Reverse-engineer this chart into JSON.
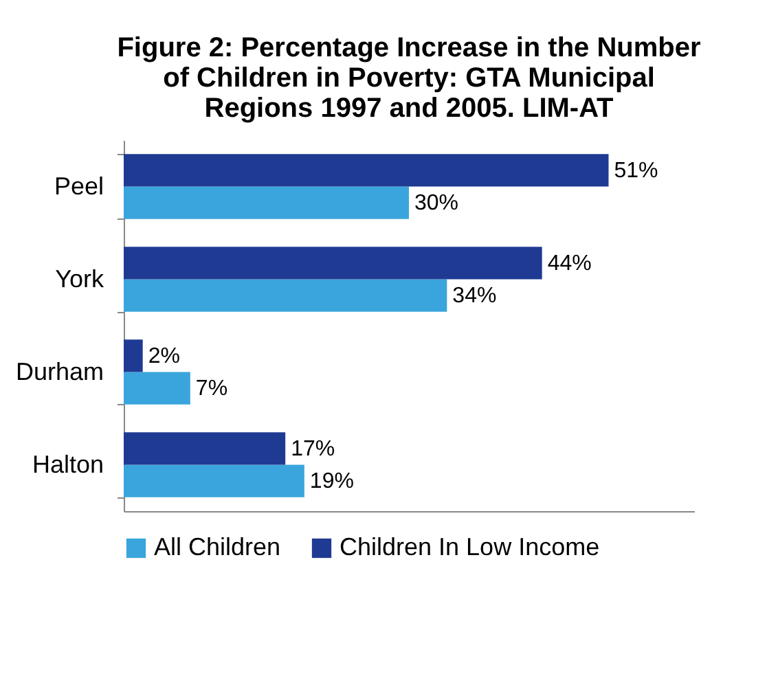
{
  "chart_data": {
    "type": "bar",
    "orientation": "horizontal",
    "title": "Figure 2: Percentage Increase in the Number of Children in Poverty: GTA Municipal Regions 1997 and 2005. LIM-AT",
    "categories": [
      "Peel",
      "York",
      "Durham",
      "Halton"
    ],
    "series": [
      {
        "name": "All Children",
        "color": "#3aa5dc",
        "values": [
          30,
          34,
          7,
          19
        ],
        "value_labels": [
          "30%",
          "34%",
          "7%",
          "19%"
        ]
      },
      {
        "name": "Children In Low Income",
        "color": "#1f3a93",
        "values": [
          51,
          44,
          2,
          17
        ],
        "value_labels": [
          "51%",
          "44%",
          "2%",
          "17%"
        ]
      }
    ],
    "xlim": [
      0,
      60
    ],
    "tick_labels": "y",
    "grid": false,
    "legend": "bottom"
  }
}
